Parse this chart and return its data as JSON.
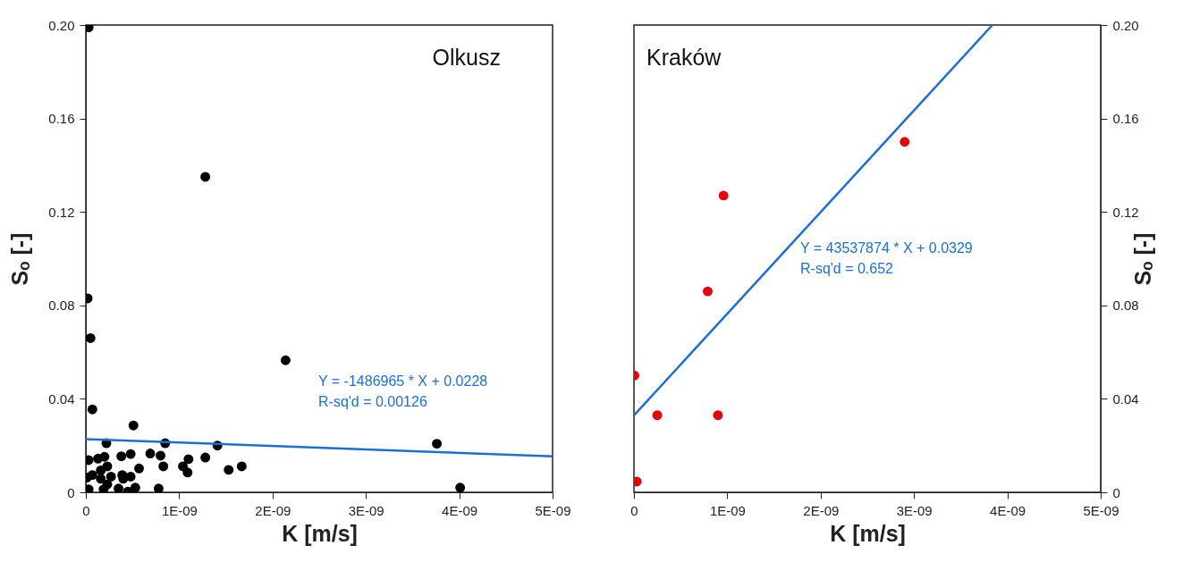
{
  "chart_data": [
    {
      "type": "scatter",
      "title": "Olkusz",
      "xlabel": "K [m/s]",
      "ylabel": "Sₒ [-]",
      "grid": false,
      "annotations": [
        "Y = -1486965 * X + 0.0228",
        "R-sq'd = 0.00126"
      ],
      "xlim": [
        0,
        5e-09
      ],
      "xticks": [
        0,
        {
          "value": 1e-09,
          "label": "1E-09"
        },
        {
          "value": 2e-09,
          "label": "2E-09"
        },
        {
          "value": 3e-09,
          "label": "3E-09"
        },
        {
          "value": 4e-09,
          "label": "4E-09"
        },
        {
          "value": 5e-09,
          "label": "5E-09"
        }
      ],
      "ylim": [
        0,
        0.2
      ],
      "yticks": [
        0,
        0.04,
        0.08,
        0.12,
        0.16,
        {
          "value": 0.2,
          "label": "0.20"
        }
      ],
      "series": [
        {
          "type": "scatter",
          "marker": "circle",
          "color": "#000000",
          "x": [
            3e-11,
            1.28e-09,
            2e-11,
            5e-11,
            2.14e-09,
            7e-11,
            5.1e-10,
            2.2e-10,
            8.5e-10,
            1.41e-09,
            3.76e-09,
            4.01e-09,
            3e-11,
            1.3e-10,
            2e-10,
            3.8e-10,
            4.8e-10,
            6.9e-10,
            8e-10,
            1.1e-09,
            1.28e-09,
            2.3e-10,
            5.7e-10,
            8.3e-10,
            1.04e-09,
            1.09e-09,
            1.53e-09,
            1.67e-09,
            1e-11,
            7e-11,
            1.6e-10,
            1.6e-10,
            2.7e-10,
            3.9e-10,
            4e-10,
            4.8e-10,
            3e-11,
            1.9e-10,
            2.3e-10,
            3.5e-10,
            4.5e-10,
            5.3e-10,
            7.8e-10
          ],
          "values": [
            0.199,
            0.135,
            0.083,
            0.066,
            0.0565,
            0.0355,
            0.0286,
            0.021,
            0.021,
            0.02,
            0.0208,
            0.002,
            0.0138,
            0.0144,
            0.0152,
            0.0154,
            0.0164,
            0.0166,
            0.0157,
            0.0142,
            0.0149,
            0.0111,
            0.0102,
            0.0111,
            0.0111,
            0.0085,
            0.0096,
            0.0111,
            0.0063,
            0.0074,
            0.0094,
            0.0058,
            0.0067,
            0.0074,
            0.0058,
            0.0067,
            0.0013,
            0.0013,
            0.0034,
            0.0016,
            0.0003,
            0.002,
            0.0016
          ]
        },
        {
          "type": "line",
          "color": "#1a6fd6",
          "x": [
            0,
            5e-09
          ],
          "values": [
            0.0228,
            0.0154
          ]
        }
      ]
    },
    {
      "type": "scatter",
      "title": "Kraków",
      "xlabel": "K [m/s]",
      "ylabel": "Sₒ [-]",
      "grid": false,
      "annotations": [
        "Y = 43537874 * X + 0.0329",
        "R-sq'd = 0.652"
      ],
      "xlim": [
        0,
        5e-09
      ],
      "xticks": [
        0,
        {
          "value": 1e-09,
          "label": "1E-09"
        },
        {
          "value": 2e-09,
          "label": "2E-09"
        },
        {
          "value": 3e-09,
          "label": "3E-09"
        },
        {
          "value": 4e-09,
          "label": "4E-09"
        },
        {
          "value": 5e-09,
          "label": "5E-09"
        }
      ],
      "ylim": [
        0,
        0.2
      ],
      "yticks": [
        0,
        0.04,
        0.08,
        0.12,
        0.16,
        {
          "value": 0.2,
          "label": "0.20"
        }
      ],
      "series": [
        {
          "type": "scatter",
          "marker": "circle",
          "color": "#e8000b",
          "x": [
            5e-12,
            3e-11,
            2.5e-10,
            9e-10,
            7.9e-10,
            9.6e-10,
            2.9e-09
          ],
          "values": [
            0.05,
            0.0046,
            0.033,
            0.033,
            0.086,
            0.127,
            0.15
          ]
        },
        {
          "type": "line",
          "color": "#1a6fd6",
          "x": [
            0,
            3.84e-09
          ],
          "values": [
            0.0329,
            0.2
          ]
        }
      ]
    }
  ]
}
